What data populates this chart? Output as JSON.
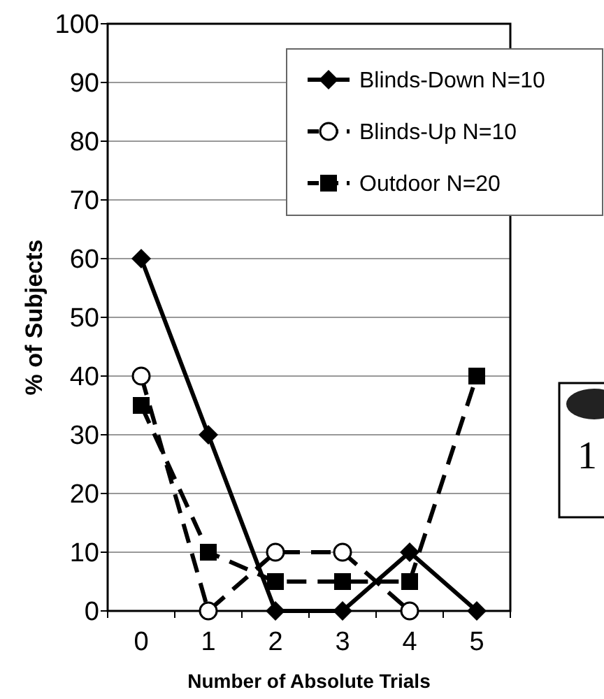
{
  "chart_data": {
    "type": "line",
    "xlabel": "Number of Absolute Trials",
    "ylabel": "% of Subjects",
    "categories": [
      "0",
      "1",
      "2",
      "3",
      "4",
      "5"
    ],
    "series": [
      {
        "name": "Blinds-Down N=10",
        "color": "#000000",
        "marker": "diamond",
        "line_style": "solid",
        "values": [
          60,
          30,
          0,
          0,
          10,
          0
        ]
      },
      {
        "name": "Blinds-Up N=10",
        "color": "#000000",
        "marker": "circle",
        "line_style": "dashed",
        "values": [
          40,
          0,
          10,
          10,
          0,
          null
        ]
      },
      {
        "name": "Outdoor N=20",
        "color": "#000000",
        "marker": "square",
        "line_style": "dashed",
        "values": [
          35,
          10,
          5,
          5,
          5,
          40
        ]
      }
    ],
    "ylim": [
      0,
      100
    ],
    "yticks": [
      0,
      10,
      20,
      30,
      40,
      50,
      60,
      70,
      80,
      90,
      100
    ],
    "grid": "y",
    "legend": "top right",
    "annotations": [
      "1"
    ]
  }
}
